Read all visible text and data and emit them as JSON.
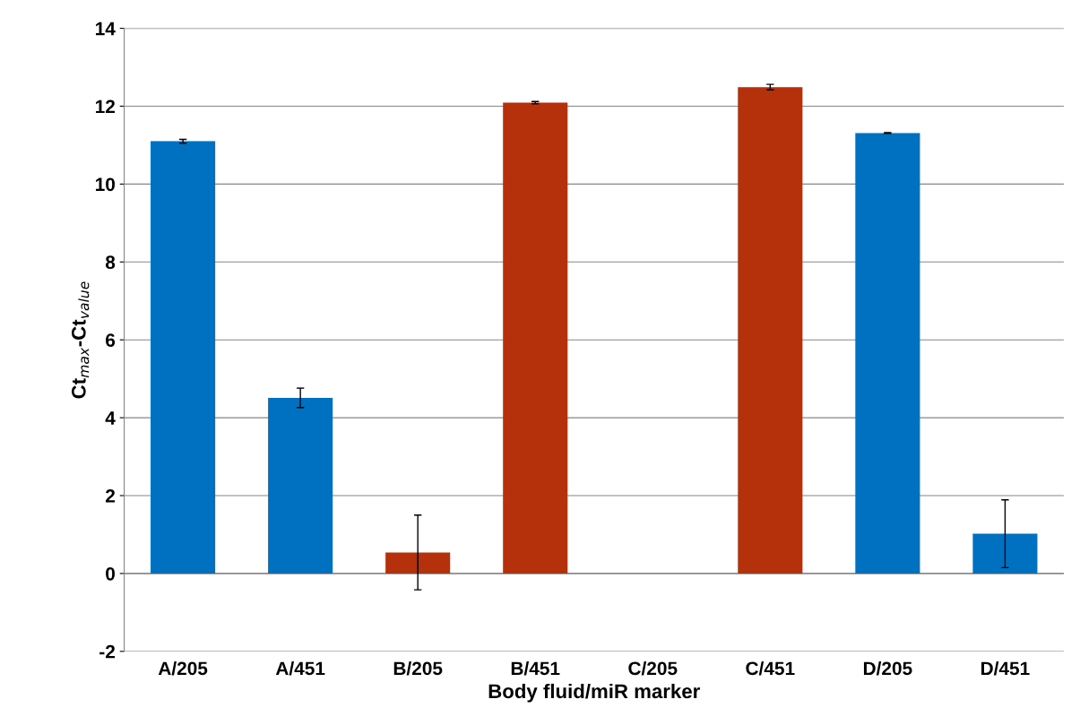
{
  "chart_data": {
    "type": "bar",
    "xlabel": "Body fluid/miR marker",
    "ylabel": "Ct$_{max}$-Ct$_{value}$",
    "categories": [
      "A/205",
      "A/451",
      "B/205",
      "B/451",
      "C/205",
      "C/451",
      "D/205",
      "D/451"
    ],
    "values": [
      11.1,
      4.51,
      0.54,
      12.09,
      0,
      12.49,
      11.31,
      1.02
    ],
    "errors": [
      0.05,
      0.25,
      0.96,
      0.03,
      null,
      0.07,
      0.01,
      0.87
    ],
    "colors": [
      "#0070c0",
      "#0070c0",
      "#b5310b",
      "#b5310b",
      "#b5310b",
      "#b5310b",
      "#0070c0",
      "#0070c0"
    ],
    "ylim": [
      -2,
      14
    ],
    "yticks": [
      -2,
      0,
      2,
      4,
      6,
      8,
      10,
      12,
      14
    ],
    "grid": "y",
    "legend": false
  }
}
